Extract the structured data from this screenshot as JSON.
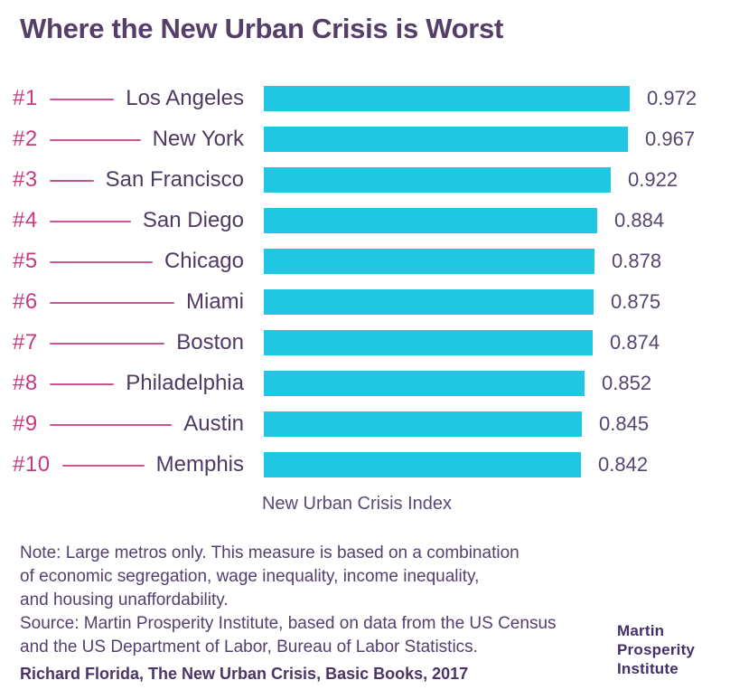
{
  "chart_data": {
    "type": "bar",
    "orientation": "horizontal",
    "title": "Where the New Urban Crisis is Worst",
    "xlabel": "New Urban Crisis Index",
    "xlim": [
      0,
      1.0
    ],
    "grid": false,
    "legend": false,
    "bar_color": "#21C7E2",
    "rank_color": "#C73A80",
    "label_color": "#4E3A63",
    "title_color": "#553E68",
    "rows": [
      {
        "rank": "#1",
        "city": "Los Angeles",
        "value": 0.972
      },
      {
        "rank": "#2",
        "city": "New York",
        "value": 0.967
      },
      {
        "rank": "#3",
        "city": "San Francisco",
        "value": 0.922
      },
      {
        "rank": "#4",
        "city": "San Diego",
        "value": 0.884
      },
      {
        "rank": "#5",
        "city": "Chicago",
        "value": 0.878
      },
      {
        "rank": "#6",
        "city": "Miami",
        "value": 0.875
      },
      {
        "rank": "#7",
        "city": "Boston",
        "value": 0.874
      },
      {
        "rank": "#8",
        "city": "Philadelphia",
        "value": 0.852
      },
      {
        "rank": "#9",
        "city": "Austin",
        "value": 0.845
      },
      {
        "rank": "#10",
        "city": "Memphis",
        "value": 0.842
      }
    ]
  },
  "footer": {
    "note_lines": [
      "Note: Large metros only. This measure is based on a combination",
      "of economic segregation, wage inequality, income inequality,",
      "and housing unaffordability."
    ],
    "source_lines": [
      "Source: Martin Prosperity Institute, based on data from the US Census",
      "and the US Department of Labor, Bureau of Labor Statistics."
    ],
    "citation": "Richard Florida, The New Urban Crisis, Basic Books, 2017"
  },
  "logo": {
    "lines": [
      "Martin",
      "Prosperity",
      "Institute"
    ]
  }
}
